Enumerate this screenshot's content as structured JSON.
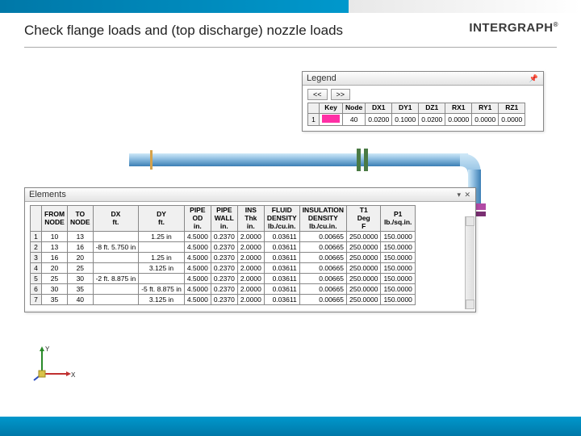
{
  "theme": {
    "top_gradient_from": "#0078a8",
    "top_gradient_to": "#0098cc",
    "accent": "#0098cc",
    "panel_bg": "#f4f4f4",
    "grid_border": "#888888"
  },
  "slide": {
    "title": "Check flange loads and (top discharge) nozzle loads",
    "logo_text": "INTERGRAPH",
    "logo_reg": "®"
  },
  "legend_panel": {
    "title": "Legend",
    "pin_icon": "📌",
    "nav_prev": "<<",
    "nav_next": ">>",
    "columns": [
      "",
      "Key",
      "Node",
      "DX1",
      "DY1",
      "DZ1",
      "RX1",
      "RY1",
      "RZ1"
    ],
    "rows": [
      {
        "idx": "1",
        "key_color": "#ff2fa5",
        "node": "40",
        "dx1": "0.0200",
        "dy1": "0.1000",
        "dz1": "0.0200",
        "rx1": "0.0000",
        "ry1": "0.0000",
        "rz1": "0.0000"
      }
    ]
  },
  "elements_panel": {
    "title": "Elements",
    "controls": "▾ ✕",
    "columns": [
      "",
      "FROM NODE",
      "TO NODE",
      "DX ft.",
      "DY ft.",
      "PIPE OD in.",
      "PIPE WALL in.",
      "INS Thk in.",
      "FLUID DENSITY lb./cu.in.",
      "INSULATION DENSITY lb./cu.in.",
      "T1 Deg F",
      "P1 lb./sq.in."
    ],
    "rows": [
      [
        "1",
        "10",
        "13",
        "",
        "1.25 in",
        "4.5000",
        "0.2370",
        "2.0000",
        "0.03611",
        "0.00665",
        "250.0000",
        "150.0000"
      ],
      [
        "2",
        "13",
        "16",
        "-8 ft. 5.750 in",
        "",
        "4.5000",
        "0.2370",
        "2.0000",
        "0.03611",
        "0.00665",
        "250.0000",
        "150.0000"
      ],
      [
        "3",
        "16",
        "20",
        "",
        "1.25 in",
        "4.5000",
        "0.2370",
        "2.0000",
        "0.03611",
        "0.00665",
        "250.0000",
        "150.0000"
      ],
      [
        "4",
        "20",
        "25",
        "",
        "3.125 in",
        "4.5000",
        "0.2370",
        "2.0000",
        "0.03611",
        "0.00665",
        "250.0000",
        "150.0000"
      ],
      [
        "5",
        "25",
        "30",
        "-2 ft. 8.875 in",
        "",
        "4.5000",
        "0.2370",
        "2.0000",
        "0.03611",
        "0.00665",
        "250.0000",
        "150.0000"
      ],
      [
        "6",
        "30",
        "35",
        "",
        "-5 ft. 8.875 in",
        "4.5000",
        "0.2370",
        "2.0000",
        "0.03611",
        "0.00665",
        "250.0000",
        "150.0000"
      ],
      [
        "7",
        "35",
        "40",
        "",
        "3.125 in",
        "4.5000",
        "0.2370",
        "2.0000",
        "0.03611",
        "0.00665",
        "250.0000",
        "150.0000"
      ]
    ]
  },
  "pipe": {
    "colors": {
      "top": "#9ac6e6",
      "bottom": "#3b7fb5",
      "highlight": "#cfe8f7",
      "flange": "#4a7a44",
      "nozzle": "#b24aa5",
      "shadow": "#1e486b"
    }
  },
  "axis": {
    "x": "X",
    "y": "Y",
    "origin_color": "#d8c24a",
    "x_color": "#c03030",
    "y_color": "#2a8a2a",
    "z_color": "#2a4ac0"
  }
}
